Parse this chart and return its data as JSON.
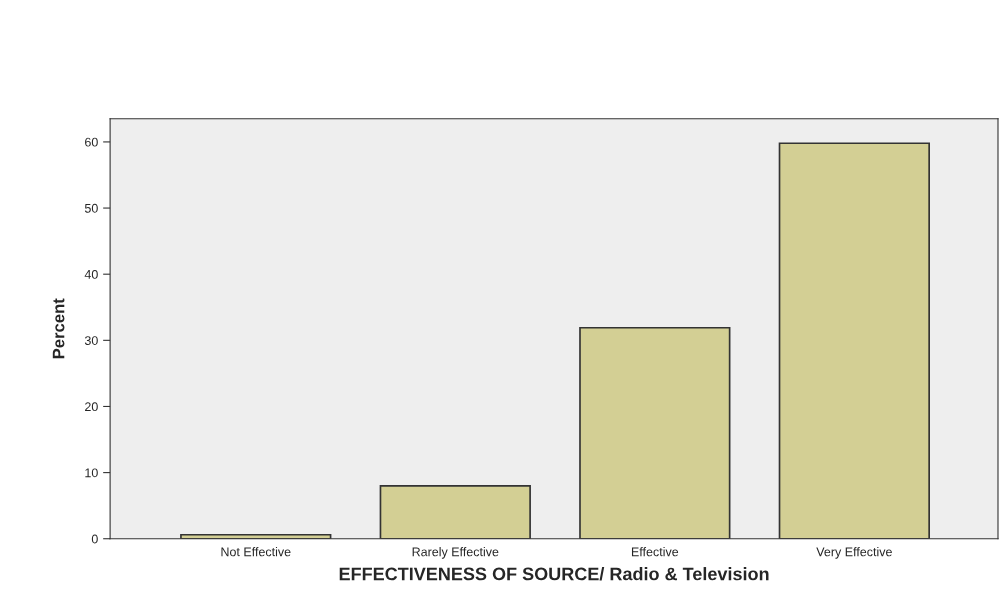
{
  "chart_data": {
    "type": "bar",
    "xlabel": "EFFECTIVENESS OF SOURCE/ Radio & Television",
    "ylabel": "Percent",
    "categories": [
      "Not Effective",
      "Rarely Effective",
      "Effective",
      "Very Effective"
    ],
    "values": [
      0.6,
      8.0,
      31.9,
      59.8
    ],
    "color": "#d3cf94",
    "ylim": [
      0,
      63.5
    ],
    "yticks": [
      0,
      10,
      20,
      30,
      40,
      50,
      60
    ],
    "grid": false
  }
}
